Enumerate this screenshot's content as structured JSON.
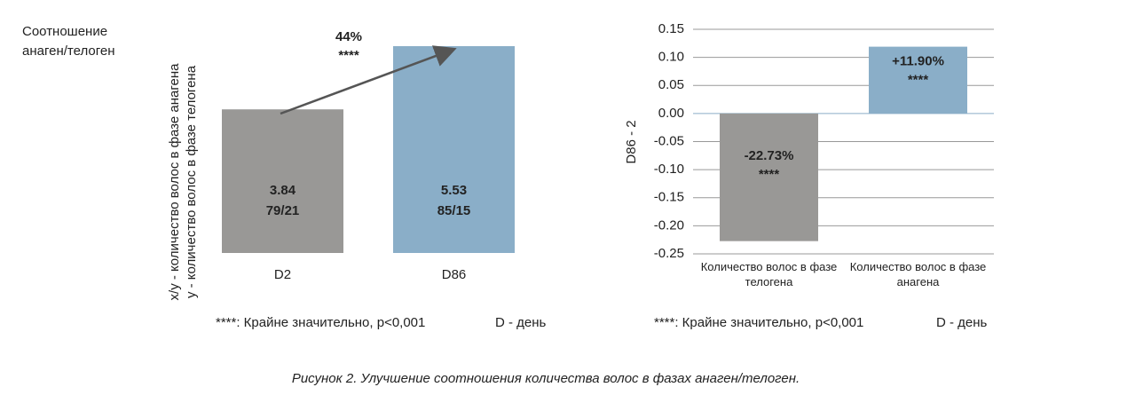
{
  "chart_data": [
    {
      "type": "bar",
      "title": "Соотношение анаген/телоген",
      "y_label": [
        "x/y - количество волос в фазе анагена",
        "y - количество волос в фазе телогена"
      ],
      "categories": [
        "D2",
        "D86"
      ],
      "values": [
        3.84,
        5.53
      ],
      "ratios": [
        "79/21",
        "85/15"
      ],
      "colors": [
        "#999896",
        "#8aaec8"
      ],
      "change_label": "44%",
      "change_significance": "****",
      "notes": [
        "****: Крайне значительно, p<0,001",
        "D - день"
      ]
    },
    {
      "type": "bar",
      "y_label": "D86 - 2",
      "categories": [
        "Количество волос в фазе телогена",
        "Количество волос в фазе анагена"
      ],
      "values": [
        -0.2273,
        0.119
      ],
      "value_labels": [
        "-22.73%",
        "+11.90%"
      ],
      "significance": [
        "****",
        "****"
      ],
      "colors": [
        "#999896",
        "#8aaec8"
      ],
      "ylim": [
        -0.25,
        0.15
      ],
      "yticks": [
        {
          "value": 0.15,
          "label": "0.15"
        },
        {
          "value": 0.1,
          "label": "0.10"
        },
        {
          "value": 0.05,
          "label": "0.05"
        },
        {
          "value": 0,
          "label": "0.00"
        },
        {
          "value": -0.05,
          "label": "-0.05"
        },
        {
          "value": -0.1,
          "label": "-0.10"
        },
        {
          "value": -0.15,
          "label": "-0.15"
        },
        {
          "value": -0.2,
          "label": "-0.20"
        },
        {
          "value": -0.25,
          "label": "-0.25"
        }
      ],
      "grid": true,
      "notes": [
        "****: Крайне значительно, p<0,001",
        "D - день"
      ]
    }
  ],
  "caption": "Рисунок 2. Улучшение соотношения количества волос в фазах анаген/телоген."
}
